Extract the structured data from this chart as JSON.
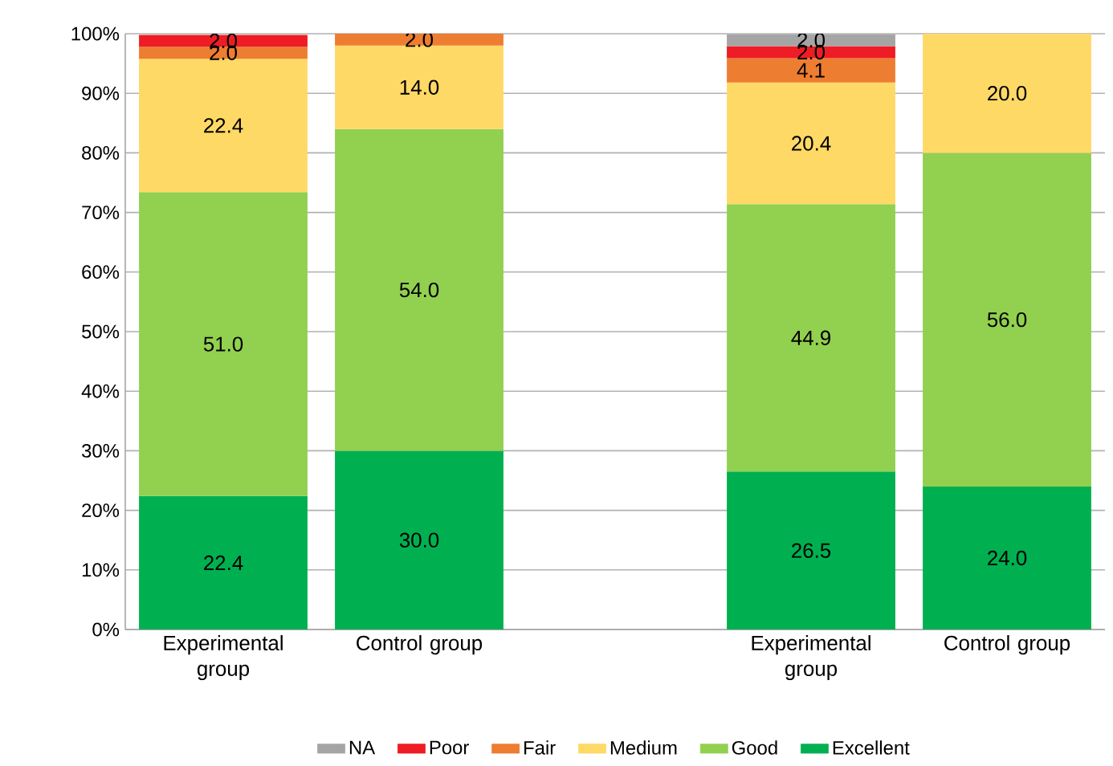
{
  "chart_data": {
    "type": "bar",
    "stacked": true,
    "categories": [
      "Experimental group",
      "Control group",
      null,
      "Experimental group",
      "Control group"
    ],
    "series": [
      {
        "name": "Excellent",
        "color": "#00b050",
        "values": [
          22.4,
          30.0,
          null,
          26.5,
          24.0
        ],
        "value_labels": [
          "22.4",
          "30.0",
          null,
          "26.5",
          "24.0"
        ]
      },
      {
        "name": "Good",
        "color": "#92d050",
        "values": [
          51.0,
          54.0,
          null,
          44.9,
          56.0
        ],
        "value_labels": [
          "51.0",
          "54.0",
          null,
          "44.9",
          "56.0"
        ]
      },
      {
        "name": "Medium",
        "color": "#ffd966",
        "values": [
          22.4,
          14.0,
          null,
          20.4,
          20.0
        ],
        "value_labels": [
          "22.4",
          "14.0",
          null,
          "20.4",
          "20.0"
        ]
      },
      {
        "name": "Fair",
        "color": "#ed7d31",
        "values": [
          2.0,
          2.0,
          null,
          4.1,
          null
        ],
        "value_labels": [
          "2.0",
          "2.0",
          null,
          "4.1",
          null
        ]
      },
      {
        "name": "Poor",
        "color": "#ee1c25",
        "values": [
          2.0,
          null,
          null,
          2.0,
          null
        ],
        "value_labels": [
          "2.0",
          null,
          null,
          "2.0",
          null
        ]
      },
      {
        "name": "NA",
        "color": "#a5a5a5",
        "values": [
          null,
          null,
          null,
          2.0,
          null
        ],
        "value_labels": [
          null,
          null,
          null,
          "2.0",
          null
        ]
      }
    ],
    "ylim": [
      0,
      100
    ],
    "yticks": [
      {
        "value": 0,
        "label": "0%"
      },
      {
        "value": 10,
        "label": "10%"
      },
      {
        "value": 20,
        "label": "20%"
      },
      {
        "value": 30,
        "label": "30%"
      },
      {
        "value": 40,
        "label": "40%"
      },
      {
        "value": 50,
        "label": "50%"
      },
      {
        "value": 60,
        "label": "60%"
      },
      {
        "value": 70,
        "label": "70%"
      },
      {
        "value": 80,
        "label": "80%"
      },
      {
        "value": 90,
        "label": "90%"
      },
      {
        "value": 100,
        "label": "100%"
      }
    ],
    "grid": "y",
    "legend": "bottom"
  }
}
